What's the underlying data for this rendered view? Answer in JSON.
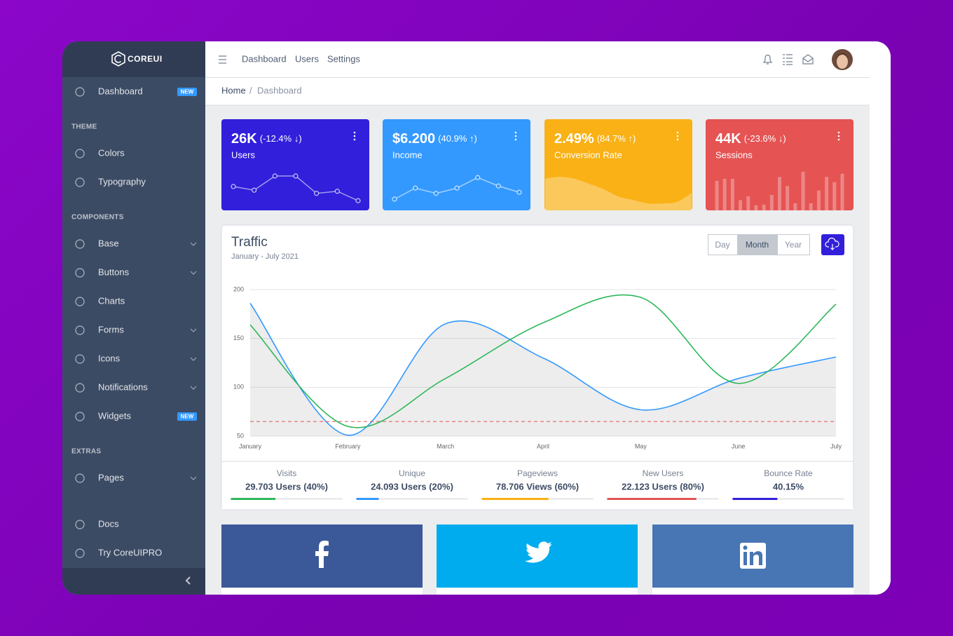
{
  "sidebar": {
    "brand": "COREUI",
    "nav": [
      {
        "label": "Dashboard",
        "badge": "NEW"
      },
      {
        "section": "THEME"
      },
      {
        "label": "Colors"
      },
      {
        "label": "Typography"
      },
      {
        "section": "COMPONENTS"
      },
      {
        "label": "Base",
        "dropdown": true
      },
      {
        "label": "Buttons",
        "dropdown": true
      },
      {
        "label": "Charts"
      },
      {
        "label": "Forms",
        "dropdown": true
      },
      {
        "label": "Icons",
        "dropdown": true
      },
      {
        "label": "Notifications",
        "dropdown": true
      },
      {
        "label": "Widgets",
        "badge": "NEW"
      },
      {
        "section": "EXTRAS"
      },
      {
        "label": "Pages",
        "dropdown": true
      }
    ],
    "footer": [
      {
        "label": "Docs"
      },
      {
        "label": "Try CoreUIPRO"
      }
    ]
  },
  "header": {
    "nav": [
      "Dashboard",
      "Users",
      "Settings"
    ]
  },
  "breadcrumb": {
    "items": [
      "Home",
      "Dashboard"
    ],
    "separator": "/"
  },
  "widgets": [
    {
      "value": "26K",
      "change": "(-12.4% ↓)",
      "label": "Users",
      "color": "#321fdb",
      "chart": {
        "type": "line",
        "values": [
          62,
          55,
          82,
          82,
          49,
          53,
          35
        ],
        "ylim": [
          30,
          90
        ]
      }
    },
    {
      "value": "$6.200",
      "change": "(40.9% ↑)",
      "label": "Income",
      "color": "#3399ff",
      "chart": {
        "type": "line",
        "values": [
          38,
          59,
          49,
          59,
          79,
          63,
          51
        ],
        "ylim": [
          30,
          90
        ]
      }
    },
    {
      "value": "2.49%",
      "change": "(84.7% ↑)",
      "label": "Conversion Rate",
      "color": "#f9b115",
      "chart": {
        "type": "area",
        "values": [
          82,
          87,
          82,
          69,
          55,
          36,
          27,
          18,
          18,
          22,
          45
        ],
        "ylim": [
          0,
          100
        ]
      }
    },
    {
      "value": "44K",
      "change": "(-23.6% ↓)",
      "label": "Sessions",
      "color": "#e55353",
      "chart": {
        "type": "bar",
        "values": [
          46,
          49,
          49,
          16,
          22,
          8,
          9,
          24,
          52,
          38,
          11,
          60,
          11,
          31,
          52,
          44,
          57
        ],
        "ylim": [
          0,
          60
        ]
      }
    }
  ],
  "chart_data": {
    "type": "line",
    "title": "Traffic",
    "subtitle": "January - July 2021",
    "categories": [
      "January",
      "February",
      "March",
      "April",
      "May",
      "June",
      "July"
    ],
    "series": [
      {
        "color": "#3399ff",
        "fill": true,
        "values": [
          186,
          51,
          165,
          130,
          77,
          109,
          131
        ]
      },
      {
        "color": "#2eb85c",
        "values": [
          164,
          60,
          109,
          166,
          192,
          104,
          185
        ]
      },
      {
        "color": "#e55353",
        "dashed": true,
        "values": [
          65,
          65,
          65,
          65,
          65,
          65,
          65
        ]
      }
    ],
    "ylim": [
      50,
      200
    ],
    "yticks": [
      50,
      100,
      150,
      200
    ],
    "grid": true
  },
  "traffic_controls": {
    "buttons": [
      "Day",
      "Month",
      "Year"
    ],
    "active": 1
  },
  "traffic_stats": [
    {
      "label": "Visits",
      "value": "29.703 Users (40%)",
      "progress": 40,
      "color": "#2eb85c"
    },
    {
      "label": "Unique",
      "value": "24.093 Users (20%)",
      "progress": 20,
      "color": "#3399ff"
    },
    {
      "label": "Pageviews",
      "value": "78.706 Views (60%)",
      "progress": 60,
      "color": "#f9b115"
    },
    {
      "label": "New Users",
      "value": "22.123 Users (80%)",
      "progress": 80,
      "color": "#e55353"
    },
    {
      "label": "Bounce Rate",
      "value": "40.15%",
      "progress": 40.15,
      "color": "#321fdb"
    }
  ]
}
